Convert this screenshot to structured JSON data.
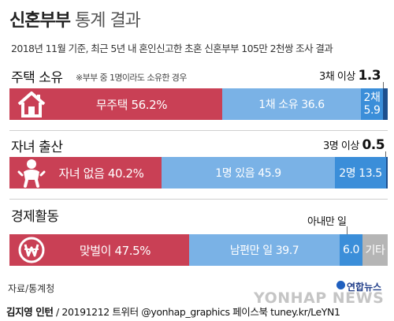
{
  "header": {
    "title_bold": "신혼부부",
    "title_light": "통계 결과",
    "subtitle": "2018년 11월 기준, 최근 5년 내 혼인신고한 초혼 신혼부부 105만 2천쌍 조사 결과"
  },
  "chart_data": [
    {
      "type": "bar",
      "orientation": "horizontal-stacked-100",
      "title": "주택 소유",
      "note": "※부부 중 1명이라도 소유한 경우",
      "icon": "house-icon",
      "segments": [
        {
          "name": "무주택",
          "value": 56.2,
          "display": "무주택 56.2%",
          "color": "#c94055"
        },
        {
          "name": "1채 소유",
          "value": 36.6,
          "display": "1채 소유 36.6",
          "color": "#7ab2e6"
        },
        {
          "name": "2채",
          "value": 5.9,
          "display_top": "2채",
          "display_bottom": "5.9",
          "color": "#3b8ed9"
        },
        {
          "name": "3채 이상",
          "value": 1.3,
          "color": "#1d4f8e"
        }
      ],
      "callout": {
        "label": "3채 이상",
        "value": "1.3"
      }
    },
    {
      "type": "bar",
      "orientation": "horizontal-stacked-100",
      "title": "자녀 출산",
      "icon": "baby-icon",
      "segments": [
        {
          "name": "자녀 없음",
          "value": 40.2,
          "display": "자녀 없음 40.2%",
          "color": "#c94055"
        },
        {
          "name": "1명 있음",
          "value": 45.9,
          "display": "1명 있음 45.9",
          "color": "#7ab2e6"
        },
        {
          "name": "2명",
          "value": 13.5,
          "display": "2명 13.5",
          "color": "#3b8ed9"
        },
        {
          "name": "3명 이상",
          "value": 0.5,
          "color": "#1d4f8e"
        }
      ],
      "callout": {
        "label": "3명 이상",
        "value": "0.5"
      }
    },
    {
      "type": "bar",
      "orientation": "horizontal-stacked-100",
      "title": "경제활동",
      "icon": "won-coin-icon",
      "segments": [
        {
          "name": "맞벌이",
          "value": 47.5,
          "display": "맞벌이 47.5%",
          "color": "#c94055"
        },
        {
          "name": "남편만 일",
          "value": 39.7,
          "display": "남편만 일 39.7",
          "color": "#7ab2e6"
        },
        {
          "name": "아내만 일",
          "value": 6.0,
          "display": "6.0",
          "color": "#3b8ed9"
        },
        {
          "name": "기타",
          "value": 6.8,
          "display": "기타",
          "color": "#b5b5b5"
        }
      ],
      "callout": {
        "label": "아내만 일",
        "value": ""
      }
    }
  ],
  "footer": {
    "source": "자료/통계청",
    "author": "김지영 인턴",
    "credit_rest": " / 20191212 트위터 @yonhap_graphics 페이스북 tuney.kr/LeYN1",
    "logo": "연합뉴스",
    "watermark": "YONHAP NEWS"
  }
}
